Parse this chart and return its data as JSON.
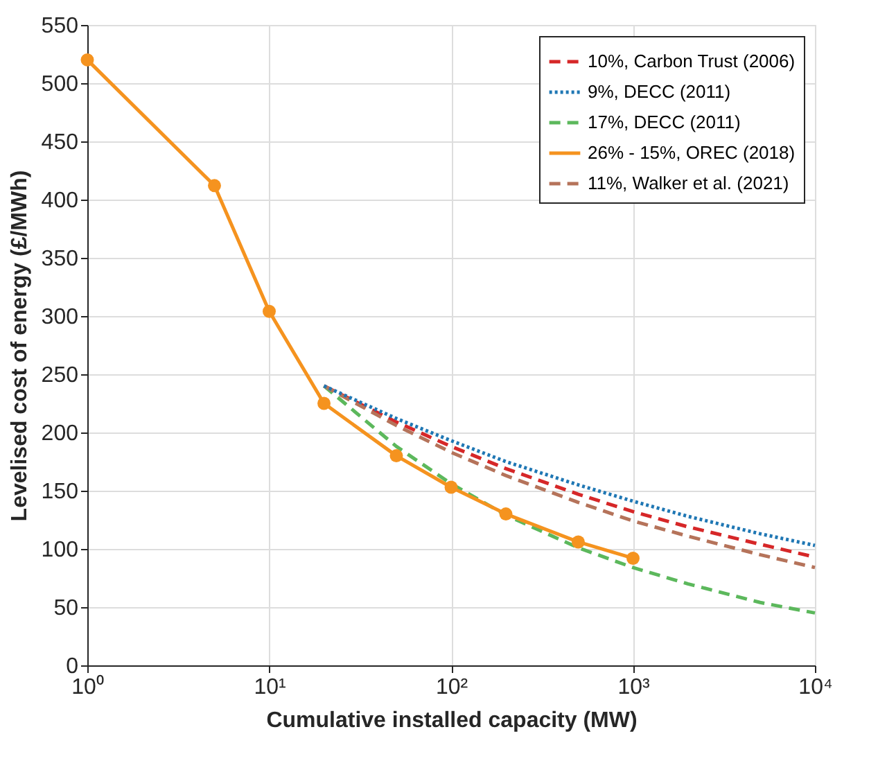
{
  "chart_data": {
    "type": "line",
    "xlabel": "Cumulative installed capacity (MW)",
    "ylabel": "Levelised cost of energy (£/MWh)",
    "log": "x",
    "xlim": [
      1,
      10000
    ],
    "xticks": [
      {
        "value": 1,
        "label": "10⁰"
      },
      {
        "value": 10,
        "label": "10¹"
      },
      {
        "value": 100,
        "label": "10²"
      },
      {
        "value": 1000,
        "label": "10³"
      },
      {
        "value": 10000,
        "label": "10⁴"
      }
    ],
    "ylim": [
      0,
      550
    ],
    "yticks": [
      0,
      50,
      100,
      150,
      200,
      250,
      300,
      350,
      400,
      450,
      500,
      550
    ],
    "grid": true,
    "legend": "top right",
    "series": [
      {
        "name": "10%, Carbon Trust (2006)",
        "color": "#d62728",
        "line_style": "dashed",
        "marker": "none",
        "x": [
          20,
          50,
          100,
          200,
          500,
          1000,
          2000,
          5000,
          10000
        ],
        "values": [
          240,
          209,
          188,
          169,
          147,
          132,
          119,
          104,
          93
        ]
      },
      {
        "name": "9%, DECC (2011)",
        "color": "#1f77b4",
        "line_style": "dotted",
        "marker": "none",
        "x": [
          20,
          50,
          100,
          200,
          500,
          1000,
          2000,
          5000,
          10000
        ],
        "values": [
          240,
          212,
          193,
          175,
          155,
          141,
          128,
          113,
          103
        ]
      },
      {
        "name": "17%, DECC (2011)",
        "color": "#5cb85c",
        "line_style": "dashed",
        "marker": "none",
        "x": [
          20,
          50,
          100,
          200,
          500,
          1000,
          2000,
          5000,
          10000
        ],
        "values": [
          240,
          188,
          156,
          129,
          101,
          84,
          70,
          54,
          45
        ]
      },
      {
        "name": "26% - 15%, OREC (2018)",
        "color": "#f5931f",
        "line_style": "solid",
        "marker": "circle",
        "x": [
          1,
          5,
          10,
          20,
          50,
          100,
          200,
          500,
          1000
        ],
        "values": [
          520,
          412,
          304,
          225,
          180,
          153,
          130,
          106,
          92
        ]
      },
      {
        "name": "11%, Walker et al. (2021)",
        "color": "#b5735a",
        "line_style": "dashed",
        "marker": "none",
        "x": [
          20,
          50,
          100,
          200,
          500,
          1000,
          2000,
          5000,
          10000
        ],
        "values": [
          240,
          206,
          183,
          163,
          140,
          124,
          111,
          95,
          84
        ]
      }
    ]
  }
}
